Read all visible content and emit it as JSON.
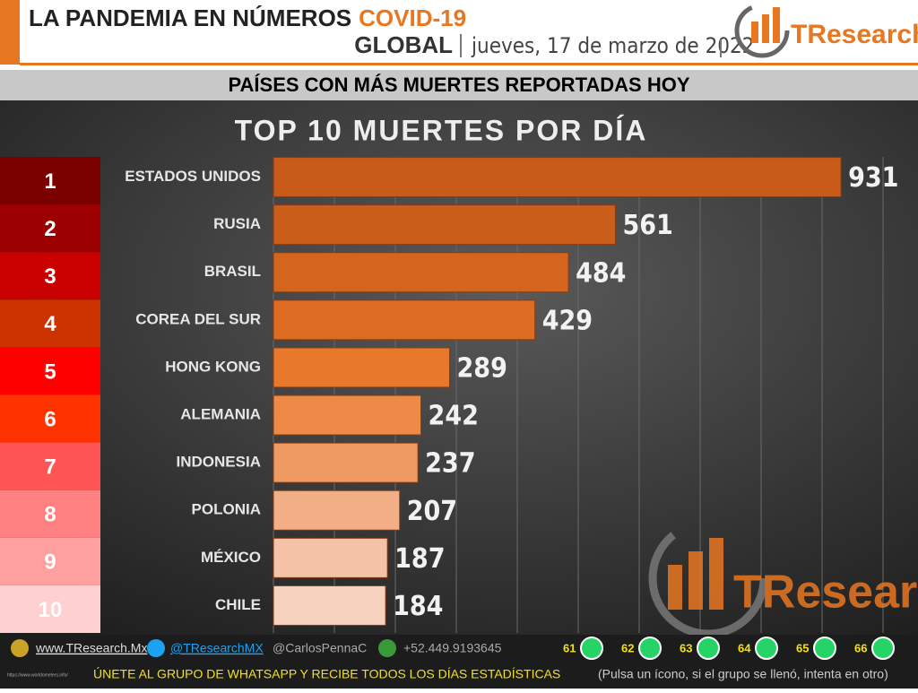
{
  "header": {
    "title": "LA PANDEMIA EN NÚMEROS",
    "title_highlight": "COVID-19",
    "scope": "GLOBAL",
    "date": "jueves, 17 de marzo de 2022",
    "logo": "TResearch"
  },
  "banner": "PAÍSES CON MÁS MUERTES REPORTADAS HOY",
  "chart_data": {
    "type": "hbar",
    "title": "TOP 10 MUERTES POR DÍA",
    "ranks": [
      1,
      2,
      3,
      4,
      5,
      6,
      7,
      8,
      9,
      10
    ],
    "rank_colors": [
      "#7a0000",
      "#9c0000",
      "#c80000",
      "#cc3300",
      "#ff0000",
      "#ff3300",
      "#ff5555",
      "#ff8080",
      "#ffa0a0",
      "#ffd0d0"
    ],
    "categories": [
      "ESTADOS UNIDOS",
      "RUSIA",
      "BRASIL",
      "COREA DEL SUR",
      "HONG KONG",
      "ALEMANIA",
      "INDONESIA",
      "POLONIA",
      "MÉXICO",
      "CHILE"
    ],
    "values": [
      931,
      561,
      484,
      429,
      289,
      242,
      237,
      207,
      187,
      184
    ],
    "colors": [
      "#c85a1a",
      "#cc5e1c",
      "#d4651f",
      "#dd6c22",
      "#e8792c",
      "#ee8a48",
      "#f09a63",
      "#f2ae84",
      "#f4c2a6",
      "#f6d2bf"
    ],
    "xlim": [
      0,
      1000
    ],
    "xticks": [
      0,
      100,
      200,
      300,
      400,
      500,
      600,
      700,
      800,
      900,
      1000
    ],
    "grid": true
  },
  "footer": {
    "website": "www.TResearch.Mx",
    "twitter": "@TResearchMX",
    "twitter2": "@CarlosPennaC",
    "phone": "+52.449.9193645",
    "groups": [
      61,
      62,
      63,
      64,
      65,
      66
    ],
    "call": "ÚNETE AL GRUPO DE WHATSAPP Y RECIBE TODOS LOS DÍAS ESTADÍSTICAS",
    "note": "(Pulsa un ícono, si el grupo se llenó, intenta en otro)",
    "source": "https://www.worldometers.info/"
  }
}
